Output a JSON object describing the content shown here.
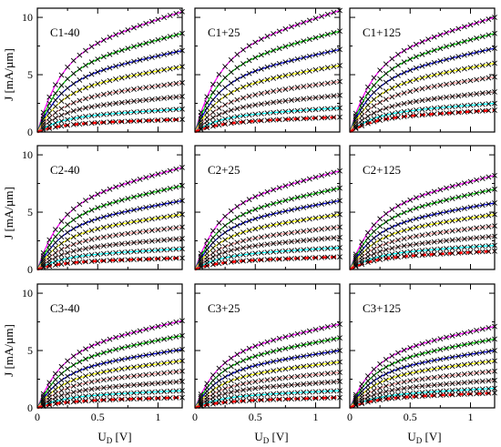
{
  "figure": {
    "ylabel": "J [mA/µm]",
    "xlabel_main": "U",
    "xlabel_sub": "D",
    "xlabel_unit": " [V]"
  },
  "chart_data": {
    "type": "line",
    "layout_grid": "3x3",
    "xlim": [
      0,
      1.2
    ],
    "ylim": [
      0,
      10.8
    ],
    "x_ticks": [
      0,
      0.5,
      1
    ],
    "x_tick_labels": [
      "0",
      "0.5",
      "1"
    ],
    "y_ticks": [
      0,
      5,
      10
    ],
    "y_tick_labels": [
      "0",
      "5",
      "10"
    ],
    "x_points": [
      0,
      0.05,
      0.1,
      0.15,
      0.2,
      0.25,
      0.3,
      0.35,
      0.4,
      0.45,
      0.5,
      0.55,
      0.6,
      0.65,
      0.7,
      0.75,
      0.8,
      0.85,
      0.9,
      0.95,
      1.0,
      1.05,
      1.1,
      1.15,
      1.2
    ],
    "series_colors": [
      "#ff00ff",
      "#00cc00",
      "#0000cc",
      "#ffff00",
      "#ff9999",
      "#996666",
      "#00ffff",
      "#ff0000"
    ],
    "series_styles": [
      "solid",
      "solid",
      "solid",
      "solid",
      "solid",
      "solid",
      "solid",
      "dashed"
    ],
    "panels": [
      {
        "label": "C1-40",
        "jmax": [
          10.5,
          8.6,
          7.1,
          5.7,
          4.3,
          3.1,
          2.0,
          1.1
        ]
      },
      {
        "label": "C1+25",
        "jmax": [
          10.6,
          8.8,
          7.2,
          5.8,
          4.4,
          3.2,
          2.1,
          1.3
        ]
      },
      {
        "label": "C1+125",
        "jmax": [
          10.0,
          8.6,
          7.3,
          6.0,
          4.8,
          3.5,
          2.5,
          1.9
        ]
      },
      {
        "label": "C2-40",
        "jmax": [
          8.9,
          7.3,
          6.0,
          4.8,
          3.7,
          2.7,
          1.8,
          1.0
        ]
      },
      {
        "label": "C2+25",
        "jmax": [
          8.6,
          7.1,
          6.0,
          4.8,
          3.7,
          2.8,
          1.9,
          1.1
        ]
      },
      {
        "label": "C2+125",
        "jmax": [
          8.2,
          7.0,
          5.8,
          4.8,
          3.8,
          2.9,
          2.1,
          1.6
        ]
      },
      {
        "label": "C3-40",
        "jmax": [
          7.6,
          6.3,
          5.1,
          4.1,
          3.2,
          2.3,
          1.5,
          0.9
        ]
      },
      {
        "label": "C3+25",
        "jmax": [
          7.3,
          6.1,
          5.0,
          4.0,
          3.1,
          2.3,
          1.5,
          0.9
        ]
      },
      {
        "label": "C3+125",
        "jmax": [
          7.1,
          6.0,
          5.0,
          4.1,
          3.2,
          2.4,
          1.7,
          1.3
        ]
      }
    ]
  }
}
